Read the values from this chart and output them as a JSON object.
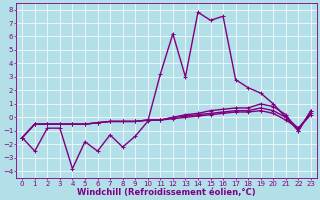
{
  "xlabel": "Windchill (Refroidissement éolien,°C)",
  "xlim": [
    -0.5,
    23.5
  ],
  "ylim": [
    -4.5,
    8.5
  ],
  "xticks": [
    0,
    1,
    2,
    3,
    4,
    5,
    6,
    7,
    8,
    9,
    10,
    11,
    12,
    13,
    14,
    15,
    16,
    17,
    18,
    19,
    20,
    21,
    22,
    23
  ],
  "yticks": [
    -4,
    -3,
    -2,
    -1,
    0,
    1,
    2,
    3,
    4,
    5,
    6,
    7,
    8
  ],
  "background_color": "#b2dfe8",
  "grid_color": "#ffffff",
  "line_color": "#800080",
  "tick_fontsize": 5,
  "label_fontsize": 6,
  "line_width": 1.0,
  "marker_size": 3,
  "x": [
    0,
    1,
    2,
    3,
    4,
    5,
    6,
    7,
    8,
    9,
    10,
    11,
    12,
    13,
    14,
    15,
    16,
    17,
    18,
    19,
    20,
    21,
    22,
    23
  ],
  "line1": [
    -1.5,
    -2.5,
    -0.8,
    -0.8,
    -3.8,
    -1.8,
    -2.5,
    -1.3,
    -2.2,
    -1.4,
    -0.3,
    3.2,
    6.2,
    3.0,
    7.8,
    7.2,
    7.5,
    2.8,
    2.2,
    1.8,
    1.0,
    0.0,
    -1.0,
    0.5
  ],
  "line2": [
    -1.5,
    -0.5,
    -0.5,
    -0.5,
    -0.5,
    -0.5,
    -0.4,
    -0.3,
    -0.3,
    -0.3,
    -0.2,
    -0.2,
    0.0,
    0.2,
    0.3,
    0.5,
    0.6,
    0.7,
    0.7,
    1.0,
    0.8,
    0.2,
    -1.0,
    0.5
  ],
  "line3": [
    -1.5,
    -0.5,
    -0.5,
    -0.5,
    -0.5,
    -0.5,
    -0.4,
    -0.3,
    -0.3,
    -0.3,
    -0.2,
    -0.2,
    0.0,
    0.1,
    0.2,
    0.3,
    0.4,
    0.5,
    0.5,
    0.7,
    0.5,
    0.0,
    -0.8,
    0.3
  ],
  "line4": [
    -1.5,
    -0.5,
    -0.5,
    -0.5,
    -0.5,
    -0.5,
    -0.4,
    -0.3,
    -0.3,
    -0.3,
    -0.2,
    -0.2,
    -0.1,
    0.0,
    0.1,
    0.2,
    0.3,
    0.4,
    0.4,
    0.5,
    0.3,
    -0.2,
    -0.8,
    0.2
  ]
}
